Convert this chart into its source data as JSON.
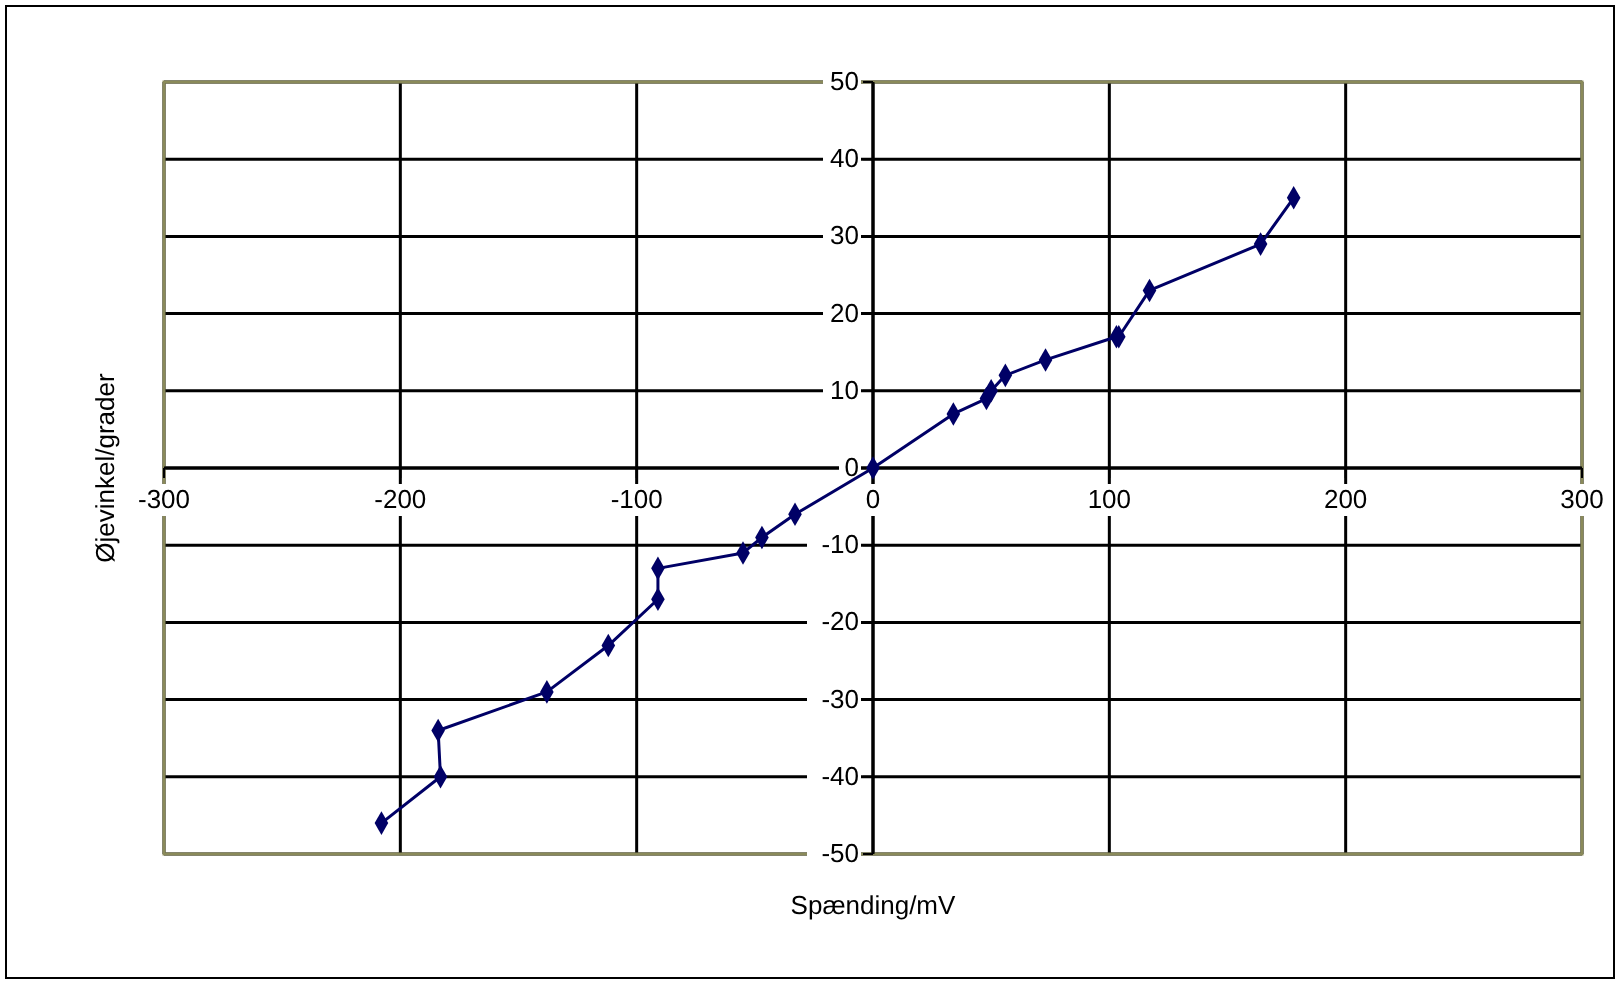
{
  "chart_data": {
    "type": "line",
    "xlabel": "Spænding/mV",
    "ylabel": "Øjevinkel/grader",
    "x": [
      -208,
      -183,
      -184,
      -138,
      -112,
      -91,
      -91,
      -55,
      -47,
      -33,
      0,
      34,
      48,
      50,
      56,
      73,
      103,
      104,
      117,
      164,
      178
    ],
    "series": [
      {
        "color": "#000066",
        "values": [
          -46,
          -40,
          -34,
          -29,
          -23,
          -17,
          -13,
          -11,
          -9,
          -6,
          0,
          7,
          9,
          10,
          12,
          14,
          17,
          17,
          23,
          29,
          35
        ]
      }
    ],
    "xlim": [
      -300,
      300
    ],
    "xticks": [
      -300,
      -200,
      -100,
      0,
      100,
      200,
      300
    ],
    "ylim": [
      -50,
      50
    ],
    "yticks": [
      -50,
      -40,
      -30,
      -20,
      -10,
      0,
      10,
      20,
      30,
      40,
      50
    ],
    "grid": true,
    "marker": "diamond",
    "line_style": "solid"
  }
}
